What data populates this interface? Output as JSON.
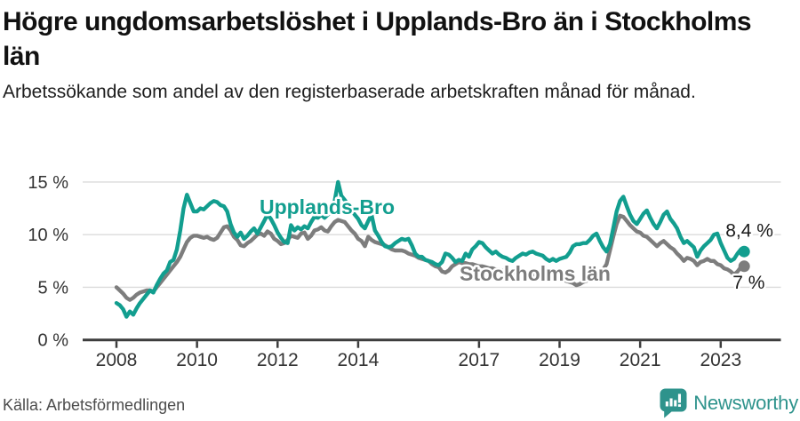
{
  "header": {
    "title": "Högre ungdomsarbetslöshet i Upplands-Bro än i Stockholms län",
    "subtitle": "Arbetssökande som andel av den registerbaserade arbetskraften månad för månad."
  },
  "footer": {
    "source": "Källa: Arbetsförmedlingen",
    "brand": "Newsworthy"
  },
  "colors": {
    "teal": "#129e8f",
    "gray": "#7d7d7d",
    "grid": "#dbdbdb",
    "axis": "#3d3d3d",
    "tick_text": "#333333",
    "value_text": "#1a1a1a",
    "brand_teal": "#2e938c"
  },
  "chart_data": {
    "type": "line",
    "title": "Högre ungdomsarbetslöshet i Upplands-Bro än i Stockholms län",
    "subtitle": "Arbetssökande som andel av den registerbaserade arbetskraften månad för månad.",
    "xlabel": "",
    "ylabel": "",
    "x_start": "2008-01",
    "x_end": "2023-08",
    "frequency": "monthly",
    "ylim": [
      0,
      15.5
    ],
    "grid": "horizontal",
    "legend_position": "inline-labels",
    "y_ticks": [
      {
        "value": 0,
        "label": "0 %"
      },
      {
        "value": 5,
        "label": "5 %"
      },
      {
        "value": 10,
        "label": "10 %"
      },
      {
        "value": 15,
        "label": "15 %"
      }
    ],
    "x_tick_years": [
      2008,
      2010,
      2012,
      2014,
      2017,
      2019,
      2021,
      2023
    ],
    "series": [
      {
        "name": "Upplands-Bro",
        "color": "#129e8f",
        "end_label": "8,4 %",
        "end_value": 8.4,
        "values": [
          3.5,
          3.3,
          2.9,
          2.2,
          2.7,
          2.4,
          3.0,
          3.5,
          3.9,
          4.3,
          4.7,
          4.5,
          5.2,
          5.8,
          6.3,
          6.6,
          7.4,
          7.6,
          8.6,
          10.4,
          12.5,
          13.8,
          13.0,
          12.2,
          12.2,
          12.5,
          12.4,
          12.7,
          13.0,
          13.2,
          13.1,
          12.8,
          12.7,
          12.2,
          11.0,
          10.2,
          9.8,
          10.2,
          9.6,
          9.9,
          10.3,
          10.6,
          10.1,
          10.7,
          11.3,
          11.9,
          11.5,
          10.9,
          10.2,
          9.7,
          9.3,
          9.2,
          10.9,
          10.4,
          10.7,
          10.5,
          10.8,
          10.6,
          11.2,
          11.7,
          11.6,
          11.9,
          11.6,
          11.9,
          12.2,
          13.2,
          15.0,
          13.7,
          13.3,
          12.8,
          12.3,
          11.9,
          11.5,
          10.9,
          10.6,
          11.3,
          11.9,
          10.4,
          9.9,
          9.3,
          8.9,
          8.8,
          8.9,
          9.2,
          9.4,
          9.6,
          9.5,
          9.6,
          9.0,
          8.2,
          7.9,
          7.9,
          7.6,
          7.5,
          7.4,
          7.2,
          7.1,
          7.4,
          8.2,
          8.1,
          7.8,
          7.4,
          7.6,
          7.5,
          8.2,
          7.9,
          8.6,
          8.9,
          9.3,
          9.2,
          8.8,
          8.5,
          8.2,
          8.4,
          8.1,
          7.9,
          7.8,
          7.6,
          7.5,
          7.8,
          8.0,
          8.2,
          8.1,
          8.3,
          8.4,
          8.2,
          8.1,
          8.0,
          7.7,
          7.5,
          7.7,
          7.5,
          7.7,
          7.8,
          7.9,
          8.3,
          8.9,
          9.1,
          9.1,
          9.2,
          9.2,
          9.5,
          9.9,
          10.1,
          9.4,
          8.8,
          8.4,
          9.1,
          10.6,
          12.2,
          13.2,
          13.6,
          12.7,
          11.9,
          11.3,
          11.0,
          11.5,
          12.0,
          12.3,
          11.6,
          11.0,
          10.6,
          11.2,
          11.9,
          12.2,
          11.5,
          11.1,
          10.6,
          9.8,
          9.2,
          9.4,
          9.1,
          8.8,
          7.9,
          8.5,
          8.9,
          9.2,
          9.5,
          10.0,
          10.1,
          9.2,
          8.5,
          7.8,
          7.5,
          7.7,
          8.2,
          8.6,
          8.4
        ]
      },
      {
        "name": "Stockholms län",
        "color": "#7d7d7d",
        "end_label": "7 %",
        "end_value": 7.0,
        "values": [
          5.0,
          4.7,
          4.4,
          4.0,
          3.8,
          4.0,
          4.3,
          4.5,
          4.6,
          4.7,
          4.7,
          4.6,
          5.0,
          5.4,
          5.8,
          6.2,
          6.6,
          7.0,
          7.4,
          7.9,
          8.6,
          9.3,
          9.7,
          9.9,
          9.9,
          9.8,
          9.7,
          9.8,
          9.6,
          9.5,
          9.7,
          10.2,
          10.7,
          10.8,
          10.4,
          9.8,
          9.5,
          9.0,
          8.9,
          9.2,
          9.4,
          9.7,
          10.0,
          10.1,
          9.9,
          10.3,
          10.1,
          9.6,
          9.4,
          9.1,
          9.2,
          9.5,
          9.9,
          9.8,
          9.7,
          10.1,
          10.2,
          9.6,
          9.9,
          10.4,
          10.5,
          10.7,
          10.4,
          10.3,
          10.8,
          11.2,
          11.4,
          11.3,
          11.2,
          10.8,
          10.4,
          10.1,
          9.6,
          9.4,
          8.9,
          9.8,
          9.5,
          9.3,
          9.2,
          9.1,
          9.0,
          8.8,
          8.6,
          8.5,
          8.5,
          8.5,
          8.4,
          8.2,
          8.1,
          8.0,
          7.8,
          7.7,
          7.6,
          7.5,
          7.2,
          7.0,
          6.9,
          6.5,
          6.4,
          6.6,
          7.0,
          7.2,
          7.4,
          7.3,
          7.3,
          7.2,
          7.2,
          7.1,
          7.0,
          7.0,
          6.9,
          6.8,
          6.8,
          6.7,
          6.7,
          6.6,
          6.6,
          6.5,
          6.5,
          6.4,
          6.4,
          6.3,
          6.3,
          6.2,
          6.2,
          6.1,
          6.1,
          6.0,
          6.0,
          5.9,
          5.9,
          5.8,
          5.8,
          5.7,
          5.6,
          5.5,
          5.4,
          5.2,
          5.3,
          5.5,
          5.6,
          5.8,
          6.0,
          6.2,
          6.4,
          6.7,
          7.2,
          8.5,
          9.8,
          11.0,
          11.8,
          11.7,
          11.3,
          10.9,
          10.6,
          10.3,
          10.2,
          9.9,
          9.8,
          9.5,
          9.2,
          8.9,
          9.2,
          9.4,
          9.1,
          8.8,
          8.6,
          8.2,
          7.9,
          7.5,
          7.8,
          7.7,
          7.5,
          7.1,
          7.4,
          7.5,
          7.7,
          7.5,
          7.5,
          7.2,
          7.1,
          6.8,
          6.7,
          6.5,
          6.2,
          6.5,
          6.9,
          7.0
        ]
      }
    ]
  }
}
